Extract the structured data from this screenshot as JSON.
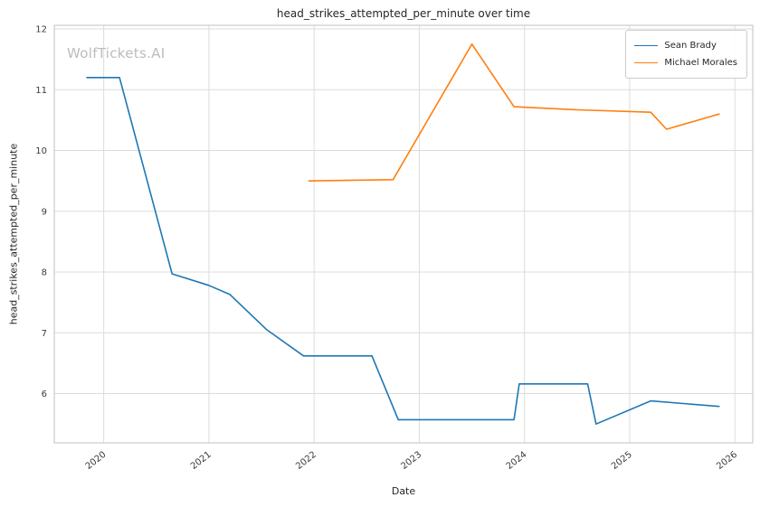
{
  "watermark": {
    "text": "WolfTickets.AI"
  },
  "chart_data": {
    "type": "line",
    "title": "head_strikes_attempted_per_minute over time",
    "xlabel": "Date",
    "ylabel": "head_strikes_attempted_per_minute",
    "x_ticks": [
      2020,
      2021,
      2022,
      2023,
      2024,
      2025,
      2026
    ],
    "y_ticks": [
      6,
      7,
      8,
      9,
      10,
      11,
      12
    ],
    "xlim": [
      2019.53,
      2026.17
    ],
    "ylim": [
      5.19,
      12.06
    ],
    "grid": true,
    "legend_position": "upper right",
    "background": "#ffffff",
    "grid_color": "#dcdcdc",
    "spine_color": "#cccccc",
    "series": [
      {
        "name": "Sean Brady",
        "color": "#1f77b4",
        "x": [
          2019.84,
          2020.15,
          2020.65,
          2021.0,
          2021.2,
          2021.55,
          2021.9,
          2022.55,
          2022.8,
          2023.9,
          2023.95,
          2024.6,
          2024.68,
          2025.2,
          2025.85
        ],
        "y": [
          11.2,
          11.2,
          7.97,
          7.78,
          7.63,
          7.05,
          6.62,
          6.62,
          5.57,
          5.57,
          6.16,
          6.16,
          5.5,
          5.88,
          5.79
        ]
      },
      {
        "name": "Michael Morales",
        "color": "#ff7f0e",
        "x": [
          2021.95,
          2022.75,
          2023.5,
          2023.9,
          2024.5,
          2025.2,
          2025.35,
          2025.85
        ],
        "y": [
          9.5,
          9.52,
          11.75,
          10.72,
          10.67,
          10.63,
          10.35,
          10.6
        ]
      }
    ]
  }
}
